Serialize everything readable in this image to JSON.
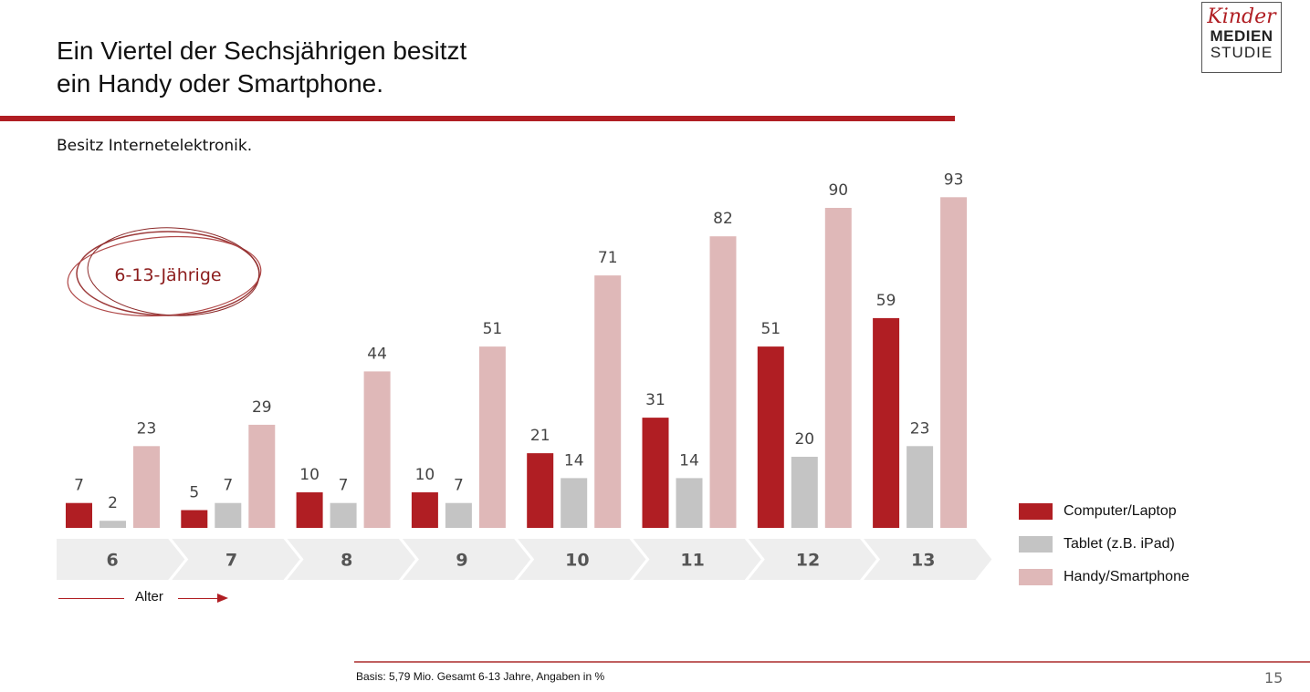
{
  "header": {
    "title_line1": "Ein Viertel der Sechsjährigen besitzt",
    "title_line2": "ein Handy oder Smartphone.",
    "subtitle": "Besitz Internetelektronik."
  },
  "logo": {
    "line1": "Kinder",
    "line2": "MEDIEN",
    "line3": "STUDIE"
  },
  "badge": {
    "text": "6-13-Jährige"
  },
  "chart_data": {
    "type": "bar",
    "title": "Besitz Internetelektronik.",
    "xlabel": "Alter",
    "ylabel": "",
    "ylim": [
      0,
      100
    ],
    "categories": [
      "6",
      "7",
      "8",
      "9",
      "10",
      "11",
      "12",
      "13"
    ],
    "series": [
      {
        "name": "Computer/Laptop",
        "color": "#b01e23",
        "values": [
          7,
          5,
          10,
          10,
          21,
          31,
          51,
          59
        ]
      },
      {
        "name": "Tablet (z.B. iPad)",
        "color": "#c4c4c4",
        "values": [
          2,
          7,
          7,
          7,
          14,
          14,
          20,
          23
        ]
      },
      {
        "name": "Handy/Smartphone",
        "color": "#dfb8b8",
        "values": [
          23,
          29,
          44,
          51,
          71,
          82,
          90,
          93
        ]
      }
    ],
    "grid": false,
    "legend_position": "right"
  },
  "axis": {
    "label": "Alter"
  },
  "footer": {
    "note": "Basis: 5,79 Mio. Gesamt 6-13 Jahre, Angaben in %",
    "page_number": "15"
  },
  "colors": {
    "accent": "#b01e23",
    "chevron": "#eeeeee"
  }
}
